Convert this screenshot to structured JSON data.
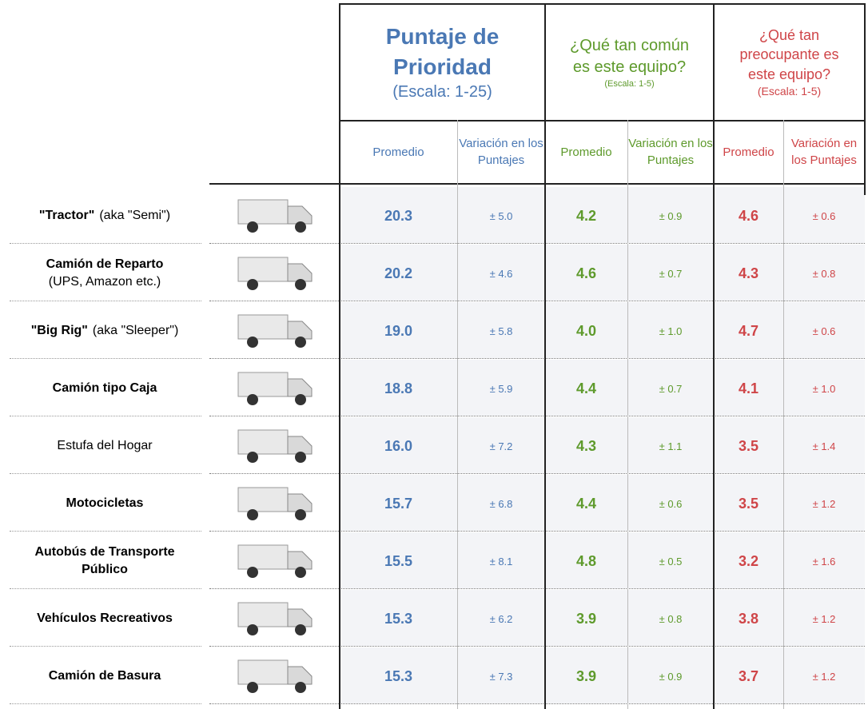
{
  "groups": [
    {
      "title": "Puntaje de Prioridad",
      "scale": "(Escala: 1-25)",
      "color": "#4a78b4"
    },
    {
      "title": "¿Qué tan común es este equipo?",
      "scale": "(Escala: 1-5)",
      "color": "#5e9a2c"
    },
    {
      "title": "¿Qué tan preocupante es este equipo?",
      "scale": "(Escala: 1-5)",
      "color": "#cf4548"
    }
  ],
  "subheaders": [
    "Promedio",
    "Variación en los Puntajes",
    "Promedio",
    "Variación en los Puntajes",
    "Promedio",
    "Variación en los Puntajes"
  ],
  "rows": [
    {
      "name": [
        {
          "text": "\"Tractor\"",
          "bold": true
        },
        {
          "text": "(aka \"Semi\")",
          "bold": false
        }
      ],
      "values": [
        "20.3",
        "± 5.0",
        "4.2",
        "± 0.9",
        "4.6",
        "± 0.6"
      ]
    },
    {
      "name": [
        {
          "text": "Camión de Reparto",
          "bold": true
        },
        {
          "text": "(UPS, Amazon etc.)",
          "bold": false
        }
      ],
      "values": [
        "20.2",
        "± 4.6",
        "4.6",
        "± 0.7",
        "4.3",
        "± 0.8"
      ]
    },
    {
      "name": [
        {
          "text": "\"Big Rig\"",
          "bold": true
        },
        {
          "text": "(aka \"Sleeper\")",
          "bold": false
        }
      ],
      "values": [
        "19.0",
        "± 5.8",
        "4.0",
        "± 1.0",
        "4.7",
        "± 0.6"
      ]
    },
    {
      "name": [
        {
          "text": "Camión tipo Caja",
          "bold": true
        }
      ],
      "values": [
        "18.8",
        "± 5.9",
        "4.4",
        "± 0.7",
        "4.1",
        "± 1.0"
      ]
    },
    {
      "name": [
        {
          "text": "Estufa del Hogar",
          "bold": false
        }
      ],
      "values": [
        "16.0",
        "± 7.2",
        "4.3",
        "± 1.1",
        "3.5",
        "± 1.4"
      ]
    },
    {
      "name": [
        {
          "text": "Motocicletas",
          "bold": true
        }
      ],
      "values": [
        "15.7",
        "± 6.8",
        "4.4",
        "± 0.6",
        "3.5",
        "± 1.2"
      ]
    },
    {
      "name": [
        {
          "text": "Autobús de Transporte Público",
          "bold": true
        }
      ],
      "values": [
        "15.5",
        "± 8.1",
        "4.8",
        "± 0.5",
        "3.2",
        "± 1.6"
      ]
    },
    {
      "name": [
        {
          "text": "Vehículos Recreativos",
          "bold": true
        }
      ],
      "values": [
        "15.3",
        "± 6.2",
        "3.9",
        "± 0.8",
        "3.8",
        "± 1.2"
      ]
    },
    {
      "name": [
        {
          "text": "Camión de Basura",
          "bold": true
        }
      ],
      "values": [
        "15.3",
        "± 7.3",
        "3.9",
        "± 0.9",
        "3.7",
        "± 1.2"
      ]
    }
  ]
}
